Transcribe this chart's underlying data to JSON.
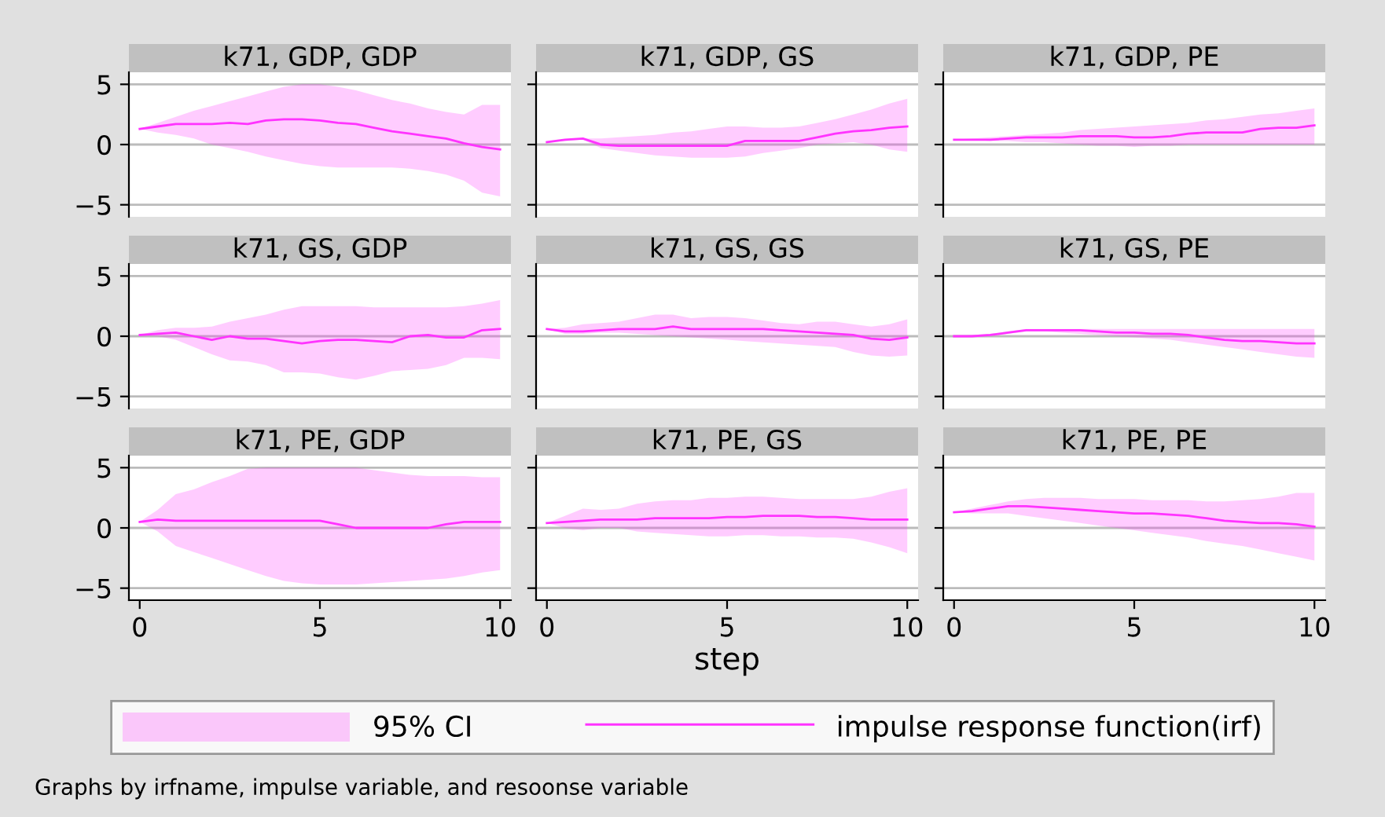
{
  "chart_data": [
    {
      "type": "line",
      "title": "k71, GDP, GDP",
      "x": [
        0,
        0.5,
        1,
        1.5,
        2,
        2.5,
        3,
        3.5,
        4,
        4.5,
        5,
        5.5,
        6,
        6.5,
        7,
        7.5,
        8,
        8.5,
        9,
        9.5,
        10
      ],
      "xlim": [
        -0.3,
        10.3
      ],
      "ylim": [
        -6,
        6
      ],
      "yticks": [
        -5,
        0,
        5
      ],
      "xticks": [
        0,
        5,
        10
      ],
      "grid": "y",
      "tick_labels": "y",
      "legend": "bottom",
      "annotations": [
        "95% CI"
      ],
      "series": [
        {
          "name": "impulse response function(irf)",
          "type": "line",
          "color": "#ff33ff",
          "values": [
            1.3,
            1.5,
            1.7,
            1.7,
            1.7,
            1.8,
            1.7,
            2.0,
            2.1,
            2.1,
            2.0,
            1.8,
            1.7,
            1.4,
            1.1,
            0.9,
            0.7,
            0.5,
            0.1,
            -0.2,
            -0.4
          ],
          "lower": [
            1.3,
            1.0,
            0.8,
            0.5,
            0.0,
            -0.3,
            -0.6,
            -1.0,
            -1.3,
            -1.6,
            -1.8,
            -1.9,
            -1.9,
            -1.9,
            -1.9,
            -2.0,
            -2.2,
            -2.5,
            -3.0,
            -4.0,
            -4.3
          ],
          "upper": [
            1.3,
            1.8,
            2.3,
            2.8,
            3.2,
            3.6,
            4.0,
            4.4,
            4.8,
            5.0,
            5.0,
            4.8,
            4.5,
            4.1,
            3.7,
            3.4,
            3.0,
            2.7,
            2.5,
            3.3,
            3.3
          ]
        }
      ]
    },
    {
      "type": "line",
      "title": "k71, GDP, GS",
      "x": [
        0,
        0.5,
        1,
        1.5,
        2,
        2.5,
        3,
        3.5,
        4,
        4.5,
        5,
        5.5,
        6,
        6.5,
        7,
        7.5,
        8,
        8.5,
        9,
        9.5,
        10
      ],
      "xlim": [
        -0.3,
        10.3
      ],
      "ylim": [
        -6,
        6
      ],
      "yticks": [
        -5,
        0,
        5
      ],
      "xticks": [
        0,
        5,
        10
      ],
      "grid": "y",
      "tick_labels": false,
      "series": [
        {
          "type": "line",
          "color": "#ff33ff",
          "values": [
            0.2,
            0.4,
            0.5,
            0,
            -0.1,
            -0.1,
            -0.1,
            -0.1,
            -0.1,
            -0.1,
            -0.1,
            0.3,
            0.3,
            0.3,
            0.3,
            0.6,
            0.9,
            1.1,
            1.2,
            1.4,
            1.5
          ],
          "lower": [
            0.2,
            0.3,
            0.4,
            -0.3,
            -0.5,
            -0.7,
            -0.9,
            -1.0,
            -1.1,
            -1.1,
            -1.1,
            -1.0,
            -0.7,
            -0.5,
            -0.3,
            0.0,
            0.1,
            0.2,
            0.0,
            -0.4,
            -0.6
          ],
          "upper": [
            0.2,
            0.4,
            0.5,
            0.5,
            0.6,
            0.7,
            0.8,
            1.0,
            1.1,
            1.3,
            1.5,
            1.5,
            1.4,
            1.4,
            1.5,
            1.8,
            2.1,
            2.5,
            2.9,
            3.4,
            3.8
          ]
        }
      ]
    },
    {
      "type": "line",
      "title": "k71, GDP, PE",
      "x": [
        0,
        0.5,
        1,
        1.5,
        2,
        2.5,
        3,
        3.5,
        4,
        4.5,
        5,
        5.5,
        6,
        6.5,
        7,
        7.5,
        8,
        8.5,
        9,
        9.5,
        10
      ],
      "xlim": [
        -0.3,
        10.3
      ],
      "ylim": [
        -6,
        6
      ],
      "yticks": [
        -5,
        0,
        5
      ],
      "xticks": [
        0,
        5,
        10
      ],
      "grid": "y",
      "tick_labels": false,
      "series": [
        {
          "type": "line",
          "color": "#ff33ff",
          "values": [
            0.4,
            0.4,
            0.4,
            0.5,
            0.6,
            0.6,
            0.6,
            0.7,
            0.7,
            0.7,
            0.6,
            0.6,
            0.7,
            0.9,
            1.0,
            1.0,
            1.0,
            1.3,
            1.4,
            1.4,
            1.6
          ],
          "lower": [
            0.4,
            0.4,
            0.3,
            0.3,
            0.2,
            0.2,
            0.1,
            0.0,
            -0.1,
            -0.1,
            -0.2,
            -0.1,
            -0.1,
            0,
            0,
            0,
            0,
            0,
            0,
            0,
            0
          ],
          "upper": [
            0.4,
            0.5,
            0.6,
            0.7,
            0.8,
            0.9,
            1.0,
            1.2,
            1.3,
            1.4,
            1.5,
            1.6,
            1.7,
            1.8,
            2.0,
            2.1,
            2.3,
            2.5,
            2.6,
            2.8,
            3.0
          ]
        }
      ]
    },
    {
      "type": "line",
      "title": "k71, GS, GDP",
      "x": [
        0,
        0.5,
        1,
        1.5,
        2,
        2.5,
        3,
        3.5,
        4,
        4.5,
        5,
        5.5,
        6,
        6.5,
        7,
        7.5,
        8,
        8.5,
        9,
        9.5,
        10
      ],
      "xlim": [
        -0.3,
        10.3
      ],
      "ylim": [
        -6,
        6
      ],
      "yticks": [
        -5,
        0,
        5
      ],
      "xticks": [
        0,
        5,
        10
      ],
      "grid": "y",
      "tick_labels": "y",
      "series": [
        {
          "type": "line",
          "color": "#ff33ff",
          "values": [
            0.1,
            0.2,
            0.3,
            0,
            -0.3,
            0,
            -0.2,
            -0.2,
            -0.4,
            -0.6,
            -0.4,
            -0.3,
            -0.3,
            -0.4,
            -0.5,
            0,
            0.1,
            -0.1,
            -0.1,
            0.5,
            0.6
          ],
          "lower": [
            0.1,
            0,
            -0.3,
            -0.9,
            -1.5,
            -2.0,
            -2.1,
            -2.4,
            -3.0,
            -3.0,
            -3.1,
            -3.4,
            -3.6,
            -3.3,
            -2.9,
            -2.8,
            -2.7,
            -2.4,
            -1.8,
            -1.8,
            -1.9
          ],
          "upper": [
            0.1,
            0.5,
            0.7,
            0.7,
            0.8,
            1.2,
            1.5,
            1.8,
            2.2,
            2.5,
            2.5,
            2.5,
            2.5,
            2.4,
            2.4,
            2.4,
            2.4,
            2.4,
            2.5,
            2.7,
            3.0
          ]
        }
      ]
    },
    {
      "type": "line",
      "title": "k71, GS, GS",
      "x": [
        0,
        0.5,
        1,
        1.5,
        2,
        2.5,
        3,
        3.5,
        4,
        4.5,
        5,
        5.5,
        6,
        6.5,
        7,
        7.5,
        8,
        8.5,
        9,
        9.5,
        10
      ],
      "xlim": [
        -0.3,
        10.3
      ],
      "ylim": [
        -6,
        6
      ],
      "yticks": [
        -5,
        0,
        5
      ],
      "xticks": [
        0,
        5,
        10
      ],
      "grid": "y",
      "tick_labels": false,
      "series": [
        {
          "type": "line",
          "color": "#ff33ff",
          "values": [
            0.6,
            0.4,
            0.4,
            0.5,
            0.6,
            0.6,
            0.6,
            0.8,
            0.6,
            0.6,
            0.6,
            0.6,
            0.6,
            0.5,
            0.4,
            0.3,
            0.2,
            0.1,
            -0.2,
            -0.3,
            -0.1
          ],
          "lower": [
            0.6,
            0.2,
            0.2,
            0.3,
            0.3,
            0.2,
            0.1,
            0.0,
            -0.1,
            -0.2,
            -0.3,
            -0.4,
            -0.5,
            -0.6,
            -0.7,
            -0.8,
            -0.9,
            -1.3,
            -1.6,
            -1.7,
            -1.6
          ],
          "upper": [
            0.6,
            0.7,
            1.0,
            1.1,
            1.2,
            1.5,
            1.8,
            1.8,
            1.5,
            1.6,
            1.6,
            1.5,
            1.3,
            1.1,
            1.0,
            1.2,
            1.2,
            1.0,
            0.8,
            1.0,
            1.4
          ]
        }
      ]
    },
    {
      "type": "line",
      "title": "k71, GS, PE",
      "x": [
        0,
        0.5,
        1,
        1.5,
        2,
        2.5,
        3,
        3.5,
        4,
        4.5,
        5,
        5.5,
        6,
        6.5,
        7,
        7.5,
        8,
        8.5,
        9,
        9.5,
        10
      ],
      "xlim": [
        -0.3,
        10.3
      ],
      "ylim": [
        -6,
        6
      ],
      "yticks": [
        -5,
        0,
        5
      ],
      "xticks": [
        0,
        5,
        10
      ],
      "grid": "y",
      "tick_labels": false,
      "series": [
        {
          "type": "line",
          "color": "#ff33ff",
          "values": [
            0,
            0,
            0.1,
            0.3,
            0.5,
            0.5,
            0.5,
            0.5,
            0.4,
            0.3,
            0.3,
            0.2,
            0.2,
            0.1,
            -0.1,
            -0.3,
            -0.4,
            -0.4,
            -0.5,
            -0.6,
            -0.6
          ],
          "lower": [
            0,
            0,
            0,
            0.2,
            0.4,
            0.4,
            0.3,
            0.2,
            0.1,
            0,
            -0.1,
            -0.2,
            -0.3,
            -0.5,
            -0.7,
            -0.9,
            -1.1,
            -1.3,
            -1.5,
            -1.7,
            -1.8
          ],
          "upper": [
            0,
            0.1,
            0.2,
            0.4,
            0.6,
            0.6,
            0.6,
            0.6,
            0.6,
            0.6,
            0.6,
            0.6,
            0.6,
            0.6,
            0.6,
            0.6,
            0.6,
            0.6,
            0.6,
            0.6,
            0.6
          ]
        }
      ]
    },
    {
      "type": "line",
      "title": "k71, PE, GDP",
      "x": [
        0,
        0.5,
        1,
        1.5,
        2,
        2.5,
        3,
        3.5,
        4,
        4.5,
        5,
        5.5,
        6,
        6.5,
        7,
        7.5,
        8,
        8.5,
        9,
        9.5,
        10
      ],
      "xlim": [
        -0.3,
        10.3
      ],
      "ylim": [
        -6,
        6
      ],
      "yticks": [
        -5,
        0,
        5
      ],
      "xticks": [
        0,
        5,
        10
      ],
      "grid": "y",
      "series": [
        {
          "type": "line",
          "color": "#ff33ff",
          "values": [
            0.5,
            0.7,
            0.6,
            0.6,
            0.6,
            0.6,
            0.6,
            0.6,
            0.6,
            0.6,
            0.6,
            0.3,
            0,
            0,
            0,
            0,
            0,
            0.3,
            0.5,
            0.5,
            0.5
          ],
          "lower": [
            0.5,
            -0.3,
            -1.5,
            -2.0,
            -2.5,
            -3.0,
            -3.5,
            -4.0,
            -4.4,
            -4.6,
            -4.7,
            -4.7,
            -4.7,
            -4.6,
            -4.5,
            -4.4,
            -4.3,
            -4.2,
            -4.0,
            -3.7,
            -3.5
          ],
          "upper": [
            0.5,
            1.5,
            2.8,
            3.2,
            3.8,
            4.3,
            4.9,
            5.0,
            5.0,
            5.0,
            5.0,
            5.0,
            5.0,
            4.8,
            4.6,
            4.4,
            4.3,
            4.3,
            4.3,
            4.2,
            4.2
          ]
        }
      ]
    },
    {
      "type": "line",
      "title": "k71, PE, GS",
      "xlabel": "step",
      "x": [
        0,
        0.5,
        1,
        1.5,
        2,
        2.5,
        3,
        3.5,
        4,
        4.5,
        5,
        5.5,
        6,
        6.5,
        7,
        7.5,
        8,
        8.5,
        9,
        9.5,
        10
      ],
      "xlim": [
        -0.3,
        10.3
      ],
      "ylim": [
        -6,
        6
      ],
      "yticks": [
        -5,
        0,
        5
      ],
      "xticks": [
        0,
        5,
        10
      ],
      "grid": "y",
      "tick_labels": "x",
      "series": [
        {
          "type": "line",
          "color": "#ff33ff",
          "values": [
            0.4,
            0.5,
            0.6,
            0.7,
            0.7,
            0.7,
            0.8,
            0.8,
            0.8,
            0.8,
            0.9,
            0.9,
            1.0,
            1.0,
            1.0,
            0.9,
            0.9,
            0.8,
            0.7,
            0.7,
            0.7
          ],
          "lower": [
            0.4,
            0.0,
            -0.2,
            0,
            0,
            -0.3,
            -0.4,
            -0.5,
            -0.6,
            -0.7,
            -0.7,
            -0.6,
            -0.6,
            -0.7,
            -0.7,
            -0.8,
            -0.8,
            -0.9,
            -1.2,
            -1.6,
            -2.1
          ],
          "upper": [
            0.4,
            1.0,
            1.6,
            1.5,
            1.6,
            2.0,
            2.2,
            2.3,
            2.3,
            2.5,
            2.5,
            2.6,
            2.6,
            2.5,
            2.4,
            2.4,
            2.4,
            2.4,
            2.6,
            3.0,
            3.3
          ]
        }
      ]
    },
    {
      "type": "line",
      "title": "k71, PE, PE",
      "x": [
        0,
        0.5,
        1,
        1.5,
        2,
        2.5,
        3,
        3.5,
        4,
        4.5,
        5,
        5.5,
        6,
        6.5,
        7,
        7.5,
        8,
        8.5,
        9,
        9.5,
        10
      ],
      "xlim": [
        -0.3,
        10.3
      ],
      "ylim": [
        -6,
        6
      ],
      "yticks": [
        -5,
        0,
        5
      ],
      "xticks": [
        0,
        5,
        10
      ],
      "grid": "y",
      "tick_labels": "x",
      "annotations": [
        "Graphs by irfname, impulse variable, and resoonse variable"
      ],
      "series": [
        {
          "type": "line",
          "color": "#ff33ff",
          "values": [
            1.3,
            1.4,
            1.6,
            1.8,
            1.8,
            1.7,
            1.6,
            1.5,
            1.4,
            1.3,
            1.2,
            1.2,
            1.1,
            1.0,
            0.8,
            0.6,
            0.5,
            0.4,
            0.4,
            0.3,
            0.1
          ],
          "lower": [
            1.3,
            1.2,
            1.2,
            1.2,
            1.0,
            0.8,
            0.6,
            0.4,
            0.2,
            0,
            -0.2,
            -0.4,
            -0.6,
            -0.8,
            -1.1,
            -1.3,
            -1.5,
            -1.8,
            -2.1,
            -2.4,
            -2.7
          ],
          "upper": [
            1.3,
            1.6,
            1.9,
            2.2,
            2.4,
            2.5,
            2.5,
            2.5,
            2.4,
            2.4,
            2.4,
            2.3,
            2.3,
            2.3,
            2.2,
            2.2,
            2.3,
            2.4,
            2.6,
            2.9,
            2.9
          ]
        }
      ]
    }
  ]
}
